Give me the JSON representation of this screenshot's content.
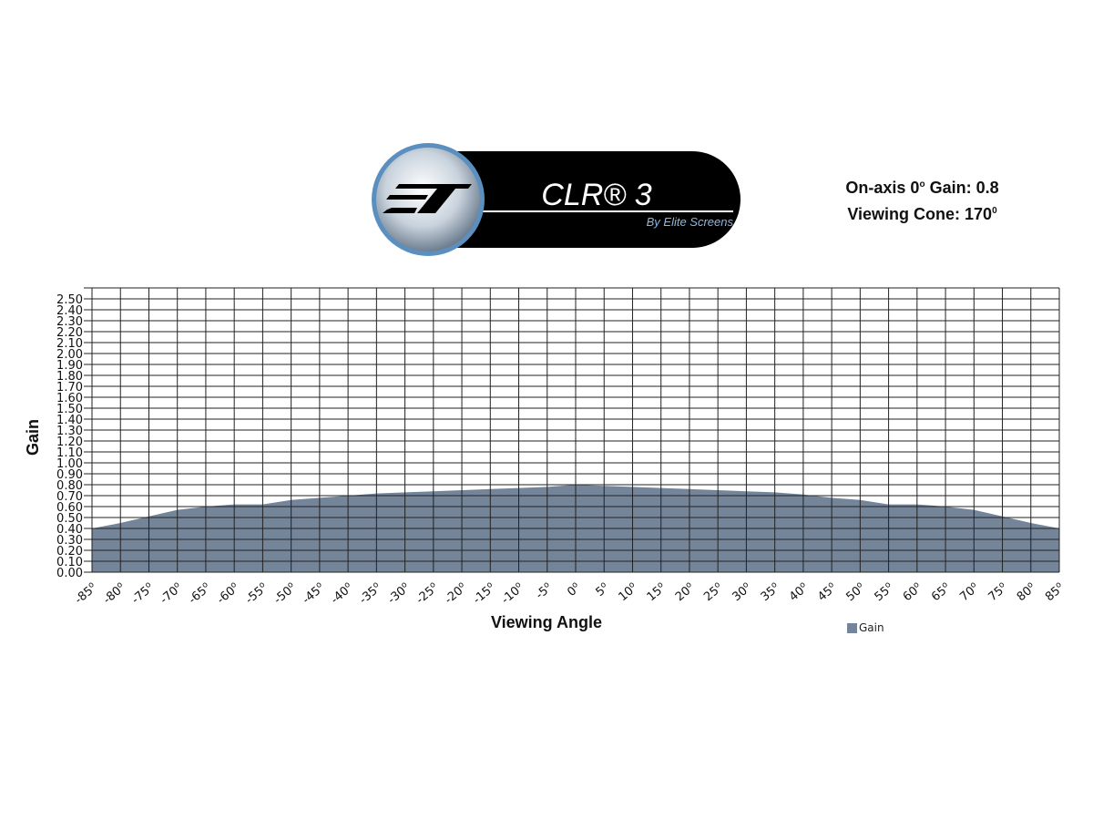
{
  "logo": {
    "product": "CLR® 3",
    "tagline": "By Elite Screens",
    "mark": "ES"
  },
  "specs": {
    "line1_prefix": "On-axis 0",
    "line1_sup": "o",
    "line1_suffix": " Gain: 0.8",
    "line2_prefix": "Viewing Cone: 170",
    "line2_sup": "0"
  },
  "colors": {
    "area": "#748599",
    "grid": "#222222",
    "logo_ring": "#5b8fbf"
  },
  "chart_data": {
    "type": "area",
    "xlabel": "Viewing Angle",
    "ylabel": "Gain",
    "x": [
      -85,
      -80,
      -75,
      -70,
      -65,
      -60,
      -55,
      -50,
      -45,
      -40,
      -35,
      -30,
      -25,
      -20,
      -15,
      -10,
      -5,
      0,
      5,
      10,
      15,
      20,
      25,
      30,
      35,
      40,
      45,
      50,
      55,
      60,
      65,
      70,
      75,
      80,
      85
    ],
    "x_tick_suffix": "o",
    "series": [
      {
        "name": "Gain",
        "values": [
          0.4,
          0.45,
          0.51,
          0.57,
          0.6,
          0.62,
          0.62,
          0.66,
          0.68,
          0.7,
          0.72,
          0.73,
          0.74,
          0.75,
          0.76,
          0.77,
          0.78,
          0.8,
          0.79,
          0.78,
          0.77,
          0.76,
          0.75,
          0.74,
          0.73,
          0.71,
          0.68,
          0.66,
          0.62,
          0.62,
          0.6,
          0.57,
          0.51,
          0.45,
          0.4
        ]
      }
    ],
    "y_ticks": [
      "0.00",
      "0.10",
      "0.20",
      "0.30",
      "0.40",
      "0.50",
      "0.60",
      "0.70",
      "0.80",
      "0.90",
      "1.00",
      "1.10",
      "1.20",
      "1.30",
      "1.40",
      "1.50",
      "1.60",
      "1.70",
      "1.80",
      "1.90",
      "2.00",
      "2.10",
      "2.20",
      "2.30",
      "2.40",
      "2.50"
    ],
    "ylim": [
      0,
      2.6
    ],
    "xlim": [
      -85,
      85
    ],
    "grid": true,
    "legend": "bottom-right"
  }
}
